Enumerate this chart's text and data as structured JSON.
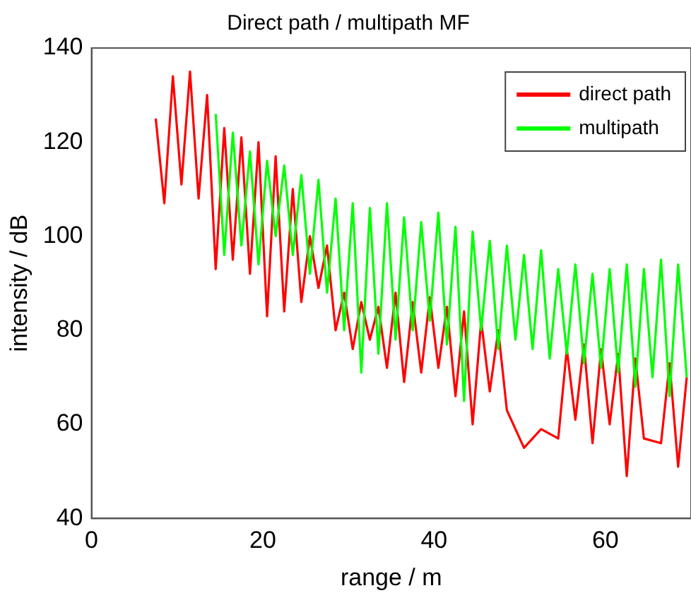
{
  "chart_data": {
    "type": "line",
    "title": "Direct path / multipath MF",
    "xlabel": "range / m",
    "ylabel": "intensity / dB",
    "xlim": [
      0,
      70
    ],
    "ylim": [
      40,
      140
    ],
    "xticks": [
      0,
      20,
      40,
      60
    ],
    "yticks": [
      40,
      60,
      80,
      100,
      120,
      140
    ],
    "grid": false,
    "legend": "top right",
    "marker": "none",
    "line_style": "solid",
    "series": [
      {
        "name": "direct path",
        "color": "#ff0000",
        "x": [
          7.5,
          8.5,
          9.5,
          10.5,
          11.5,
          12.5,
          13.5,
          14.5,
          15.5,
          16.5,
          17.5,
          18.5,
          19.5,
          20.5,
          21.5,
          22.5,
          23.5,
          24.5,
          25.5,
          26.5,
          27.5,
          28.5,
          29.5,
          30.5,
          31.5,
          32.5,
          33.5,
          34.5,
          35.5,
          36.5,
          37.5,
          38.5,
          39.5,
          40.5,
          41.5,
          42.5,
          43.5,
          44.5,
          45.5,
          46.5,
          47.5,
          48.5,
          49.5,
          50.5,
          51.5,
          52.5,
          53.5,
          54.5,
          55.5,
          56.5,
          57.5,
          58.5,
          59.5,
          60.5,
          61.5,
          62.5,
          63.5,
          64.5,
          65.5,
          66.5,
          67.5,
          68.5,
          69.5
        ],
        "values": [
          125,
          107,
          134,
          111,
          135,
          108,
          130,
          93,
          123,
          95,
          121,
          92,
          120,
          83,
          117,
          84,
          110,
          86,
          100,
          89,
          98,
          80,
          88,
          76,
          86,
          78,
          85,
          72,
          88,
          69,
          86,
          71,
          87,
          72,
          85,
          66,
          84,
          60,
          82,
          67,
          80,
          63,
          null,
          55,
          null,
          59,
          null,
          57,
          76,
          61,
          77,
          56,
          76,
          60,
          75,
          49,
          74,
          57,
          null,
          56,
          73,
          51,
          70
        ]
      },
      {
        "name": "multipath",
        "color": "#00ff00",
        "x": [
          14.5,
          15.5,
          16.5,
          17.5,
          18.5,
          19.5,
          20.5,
          21.5,
          22.5,
          23.5,
          24.5,
          25.5,
          26.5,
          27.5,
          28.5,
          29.5,
          30.5,
          31.5,
          32.5,
          33.5,
          34.5,
          35.5,
          36.5,
          37.5,
          38.5,
          39.5,
          40.5,
          41.5,
          42.5,
          43.5,
          44.5,
          45.5,
          46.5,
          47.5,
          48.5,
          49.5,
          50.5,
          51.5,
          52.5,
          53.5,
          54.5,
          55.5,
          56.5,
          57.5,
          58.5,
          59.5,
          60.5,
          61.5,
          62.5,
          63.5,
          64.5,
          65.5,
          66.5,
          67.5,
          68.5,
          69.5
        ],
        "values": [
          126,
          96,
          122,
          98,
          118,
          94,
          116,
          100,
          115,
          96,
          113,
          92,
          112,
          88,
          108,
          80,
          107,
          71,
          106,
          75,
          107,
          78,
          104,
          80,
          103,
          82,
          105,
          77,
          102,
          65,
          101,
          80,
          99,
          76,
          98,
          78,
          96,
          76,
          97,
          74,
          93,
          75,
          94,
          73,
          92,
          72,
          93,
          71,
          94,
          68,
          93,
          70,
          95,
          66,
          94,
          70
        ]
      }
    ]
  }
}
